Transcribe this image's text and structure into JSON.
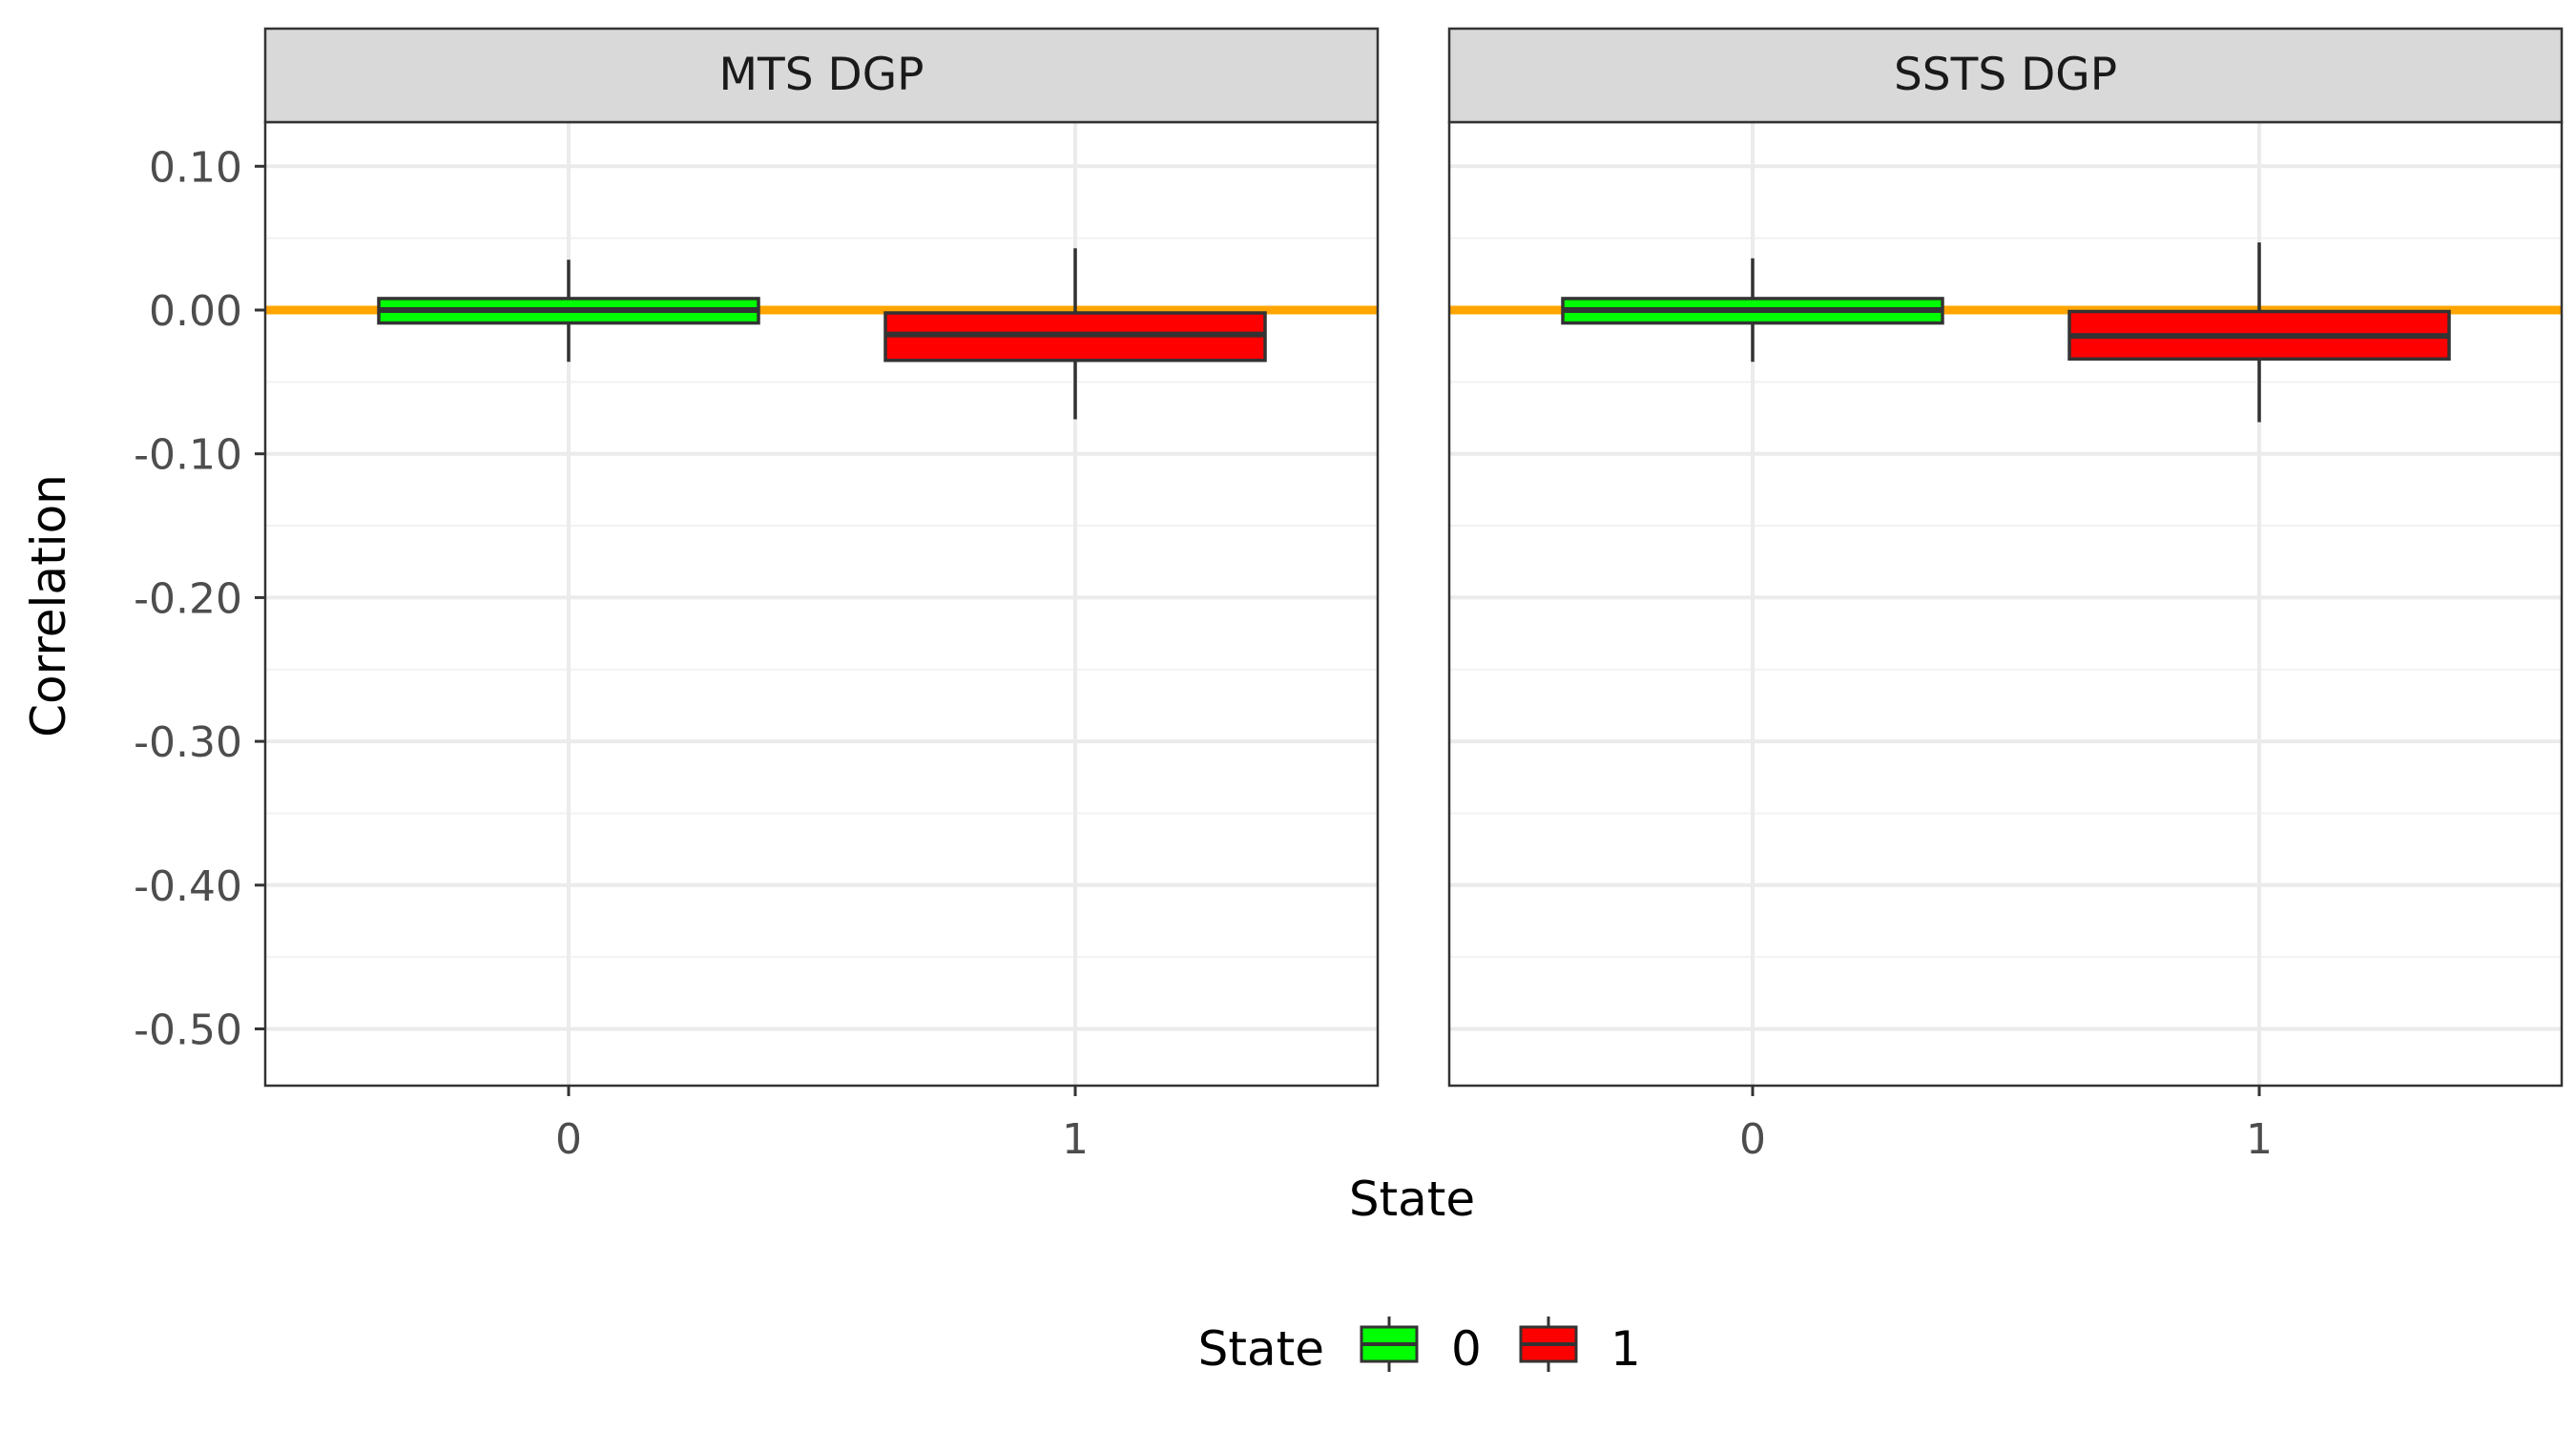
{
  "chart_data": {
    "type": "box",
    "xlabel": "State",
    "ylabel": "Correlation",
    "ylim": [
      -0.54,
      0.14
    ],
    "y_ticks": [
      "0.10",
      "0.00",
      "-0.10",
      "-0.20",
      "-0.30",
      "-0.40",
      "-0.50"
    ],
    "y_tick_values": [
      0.1,
      0.0,
      -0.1,
      -0.2,
      -0.3,
      -0.4,
      -0.5
    ],
    "categories": [
      "0",
      "1"
    ],
    "reference_line": {
      "y": 0.0,
      "color": "#ffa500"
    },
    "grid": true,
    "legend": {
      "title": "State",
      "position": "bottom",
      "entries": [
        {
          "label": "0",
          "color": "#00ff00"
        },
        {
          "label": "1",
          "color": "#ff0000"
        }
      ]
    },
    "panels": [
      {
        "title": "MTS DGP",
        "boxes": [
          {
            "state": "0",
            "color": "#00ff00",
            "whisker_low": -0.036,
            "q1": -0.009,
            "median": 0.0,
            "q3": 0.008,
            "whisker_high": 0.035
          },
          {
            "state": "1",
            "color": "#ff0000",
            "whisker_low": -0.076,
            "q1": -0.035,
            "median": -0.017,
            "q3": -0.002,
            "whisker_high": 0.043
          }
        ]
      },
      {
        "title": "SSTS DGP",
        "boxes": [
          {
            "state": "0",
            "color": "#00ff00",
            "whisker_low": -0.036,
            "q1": -0.009,
            "median": 0.0,
            "q3": 0.008,
            "whisker_high": 0.036
          },
          {
            "state": "1",
            "color": "#ff0000",
            "whisker_low": -0.078,
            "q1": -0.034,
            "median": -0.018,
            "q3": -0.001,
            "whisker_high": 0.047
          }
        ]
      }
    ]
  }
}
